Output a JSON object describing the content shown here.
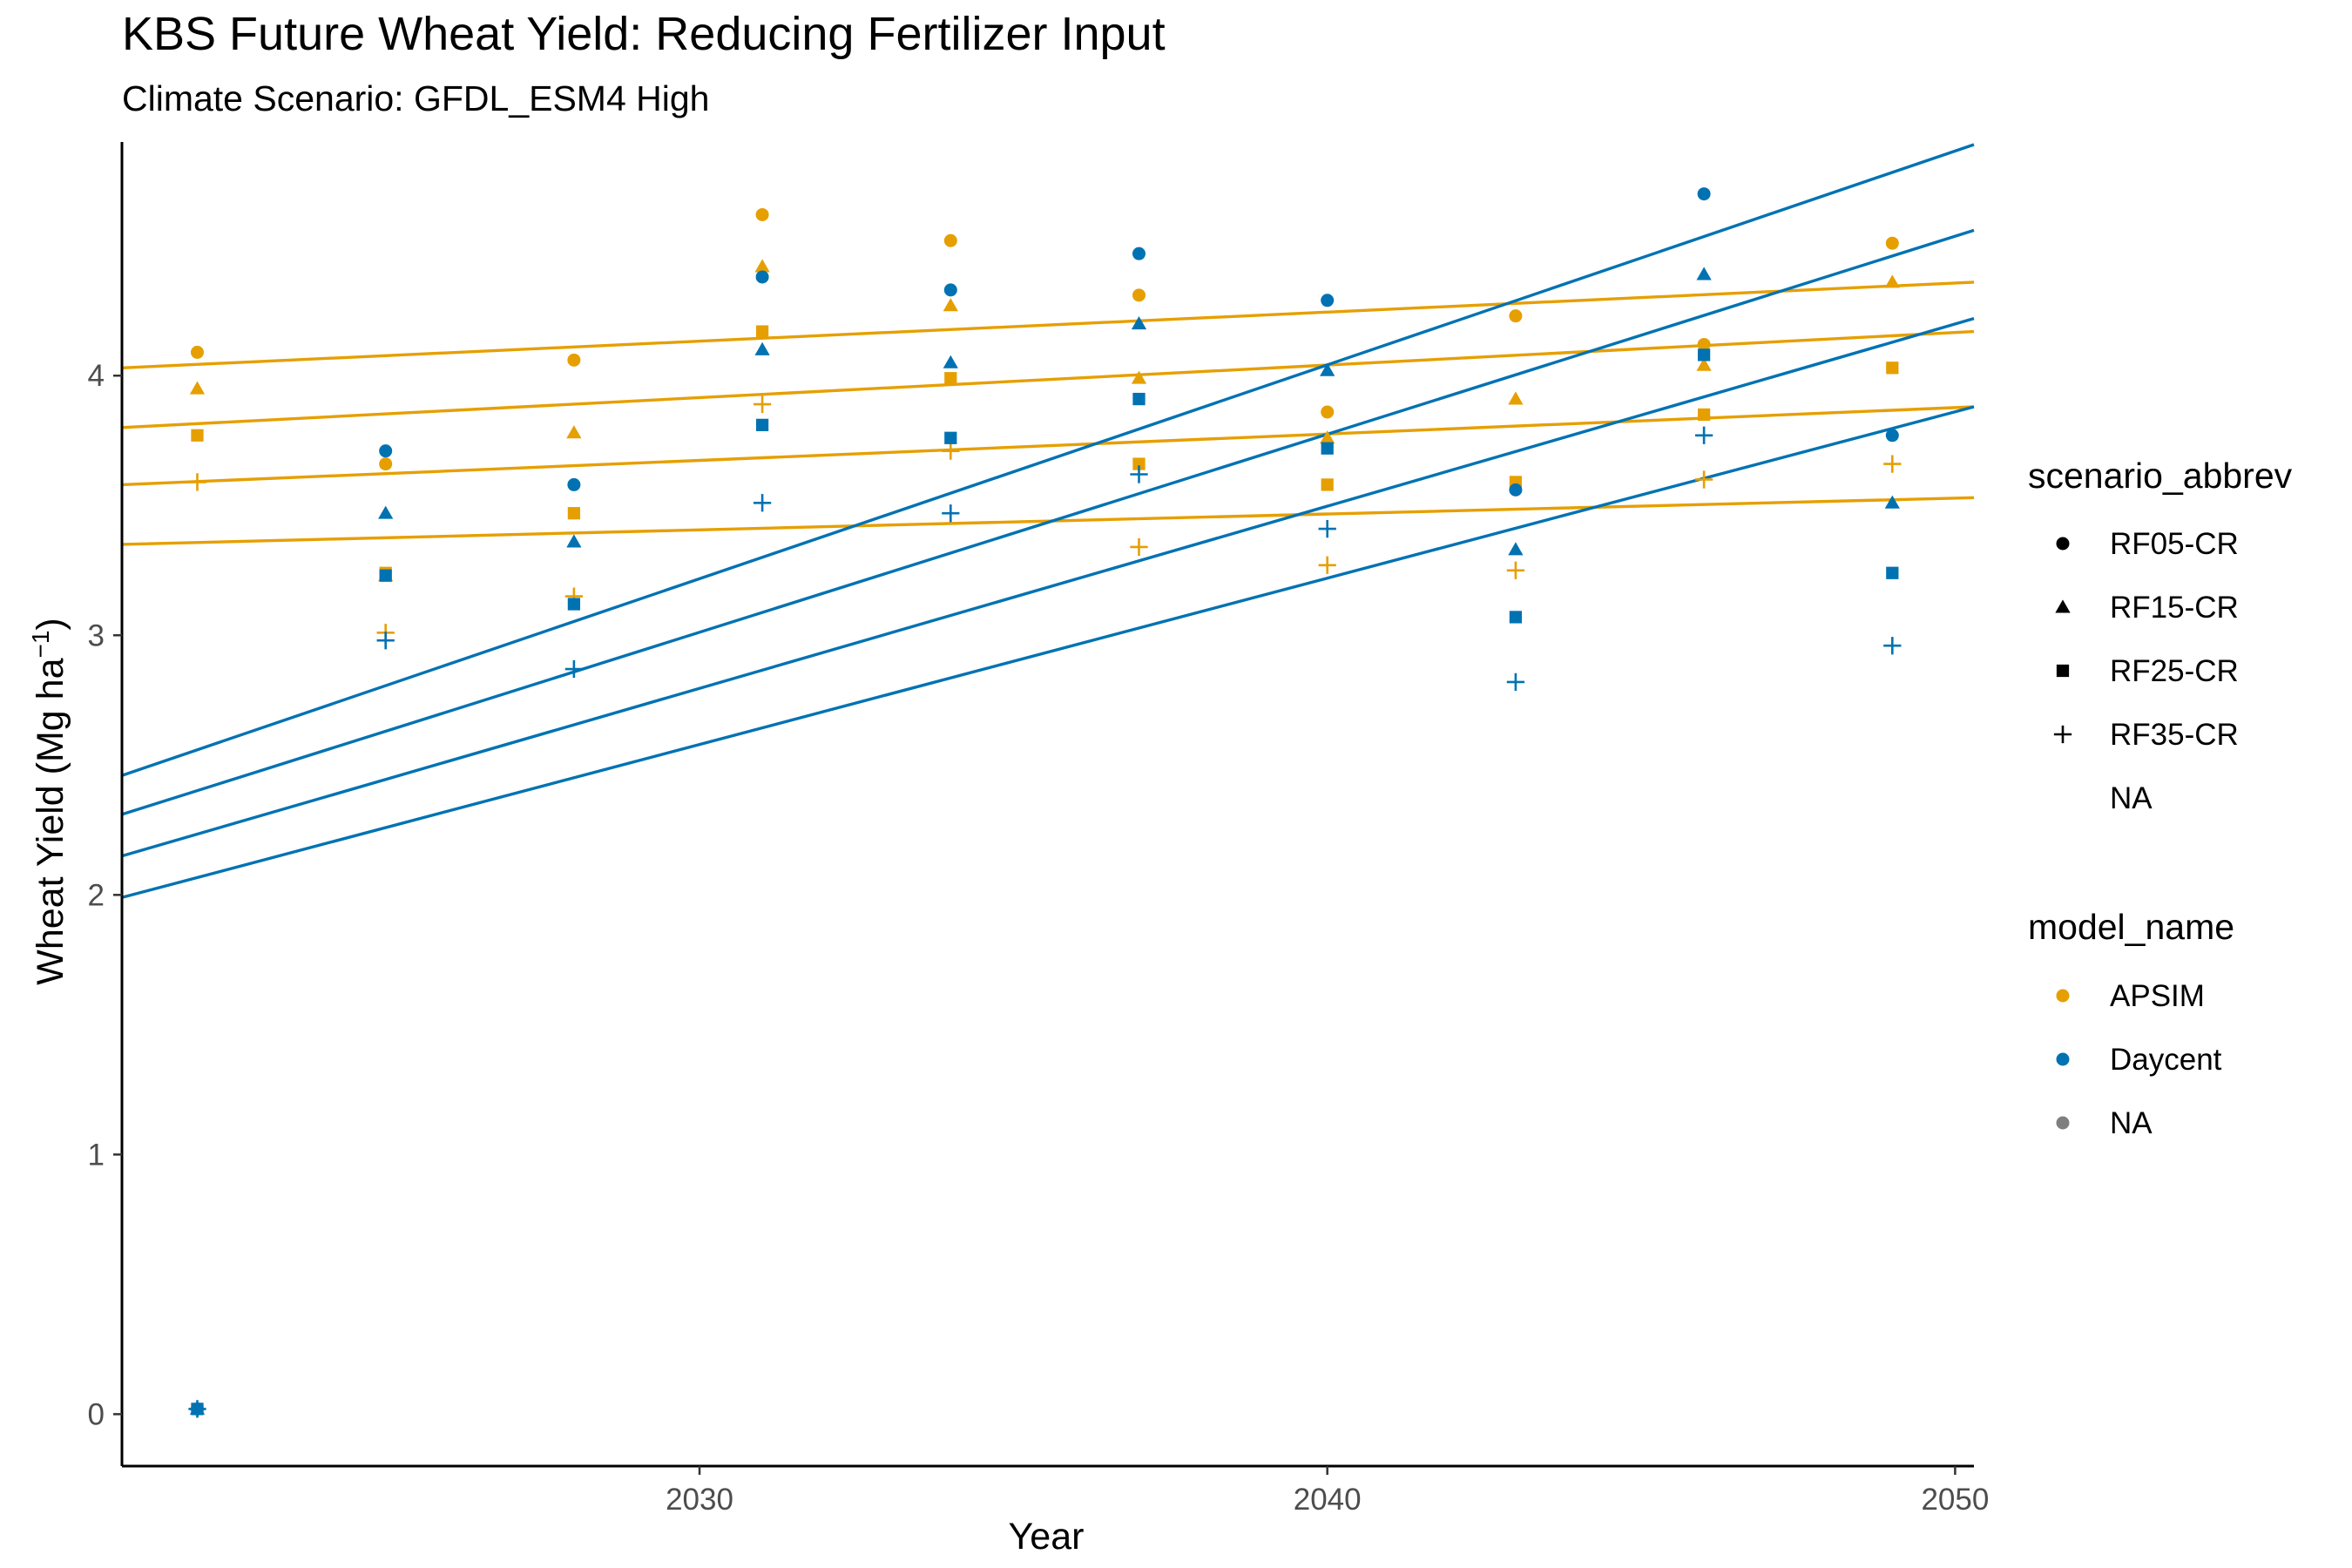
{
  "chart_data": {
    "type": "scatter",
    "title": "KBS Future Wheat Yield: Reducing Fertilizer Input",
    "subtitle": "Climate Scenario: GFDL_ESM4 High",
    "xlabel": "Year",
    "ylabel_main": "Wheat Yield (Mg ha",
    "ylabel_sup": "−1",
    "ylabel_close": ")",
    "xlim": [
      2020.8,
      2050.3
    ],
    "ylim": [
      -0.2,
      4.9
    ],
    "xticks": [
      2030,
      2040,
      2050
    ],
    "yticks": [
      0,
      1,
      2,
      3,
      4
    ],
    "grid": false,
    "legend_position": "right",
    "colors": {
      "APSIM": "#E69F00",
      "Daycent": "#0072B2",
      "NA": "#7f7f7f"
    },
    "legend_shape": {
      "title": "scenario_abbrev",
      "items": [
        {
          "label": "RF05-CR",
          "shape": "circle"
        },
        {
          "label": "RF15-CR",
          "shape": "triangle"
        },
        {
          "label": "RF25-CR",
          "shape": "square"
        },
        {
          "label": "RF35-CR",
          "shape": "plus"
        },
        {
          "label": "NA",
          "shape": "none"
        }
      ]
    },
    "legend_color": {
      "title": "model_name",
      "items": [
        {
          "label": "APSIM",
          "color": "#E69F00"
        },
        {
          "label": "Daycent",
          "color": "#0072B2"
        },
        {
          "label": "NA",
          "color": "#7f7f7f"
        }
      ]
    },
    "series": [
      {
        "model": "APSIM",
        "scenario": "RF05-CR",
        "x": [
          2022,
          2025,
          2028,
          2031,
          2034,
          2037,
          2040,
          2043,
          2046,
          2049
        ],
        "y": [
          4.09,
          3.66,
          4.06,
          4.62,
          4.52,
          4.31,
          3.86,
          4.23,
          4.12,
          4.51
        ],
        "trend": [
          4.03,
          4.36
        ]
      },
      {
        "model": "APSIM",
        "scenario": "RF15-CR",
        "x": [
          2022,
          2025,
          2028,
          2031,
          2034,
          2037,
          2040,
          2043,
          2046,
          2049
        ],
        "y": [
          3.95,
          3.23,
          3.78,
          4.42,
          4.27,
          3.99,
          3.76,
          3.91,
          4.04,
          4.36
        ],
        "trend": [
          3.8,
          4.17
        ]
      },
      {
        "model": "APSIM",
        "scenario": "RF25-CR",
        "x": [
          2022,
          2025,
          2028,
          2031,
          2034,
          2037,
          2040,
          2043,
          2046,
          2049
        ],
        "y": [
          3.77,
          3.24,
          3.47,
          4.17,
          3.99,
          3.66,
          3.58,
          3.59,
          3.85,
          4.03
        ],
        "trend": [
          3.58,
          3.88
        ]
      },
      {
        "model": "APSIM",
        "scenario": "RF35-CR",
        "x": [
          2022,
          2025,
          2028,
          2031,
          2034,
          2037,
          2040,
          2043,
          2046,
          2049
        ],
        "y": [
          3.59,
          3.01,
          3.15,
          3.89,
          3.71,
          3.34,
          3.27,
          3.25,
          3.6,
          3.66
        ],
        "trend": [
          3.35,
          3.53
        ]
      },
      {
        "model": "Daycent",
        "scenario": "RF05-CR",
        "x": [
          2022,
          2025,
          2028,
          2031,
          2034,
          2037,
          2040,
          2043,
          2046,
          2049
        ],
        "y": [
          0.02,
          3.71,
          3.58,
          4.38,
          4.33,
          4.47,
          4.29,
          3.56,
          4.7,
          3.77
        ],
        "trend": [
          2.46,
          4.89
        ]
      },
      {
        "model": "Daycent",
        "scenario": "RF15-CR",
        "x": [
          2022,
          2025,
          2028,
          2031,
          2034,
          2037,
          2040,
          2043,
          2046,
          2049
        ],
        "y": [
          0.02,
          3.47,
          3.36,
          4.1,
          4.05,
          4.2,
          4.02,
          3.33,
          4.39,
          3.51
        ],
        "trend": [
          2.31,
          4.56
        ]
      },
      {
        "model": "Daycent",
        "scenario": "RF25-CR",
        "x": [
          2022,
          2025,
          2028,
          2031,
          2034,
          2037,
          2040,
          2043,
          2046,
          2049
        ],
        "y": [
          0.02,
          3.23,
          3.12,
          3.81,
          3.76,
          3.91,
          3.72,
          3.07,
          4.08,
          3.24
        ],
        "trend": [
          2.15,
          4.22
        ]
      },
      {
        "model": "Daycent",
        "scenario": "RF35-CR",
        "x": [
          2022,
          2025,
          2028,
          2031,
          2034,
          2037,
          2040,
          2043,
          2046,
          2049
        ],
        "y": [
          0.02,
          2.98,
          2.87,
          3.51,
          3.47,
          3.62,
          3.41,
          2.82,
          3.77,
          2.96
        ],
        "trend": [
          1.99,
          3.88
        ]
      }
    ]
  }
}
